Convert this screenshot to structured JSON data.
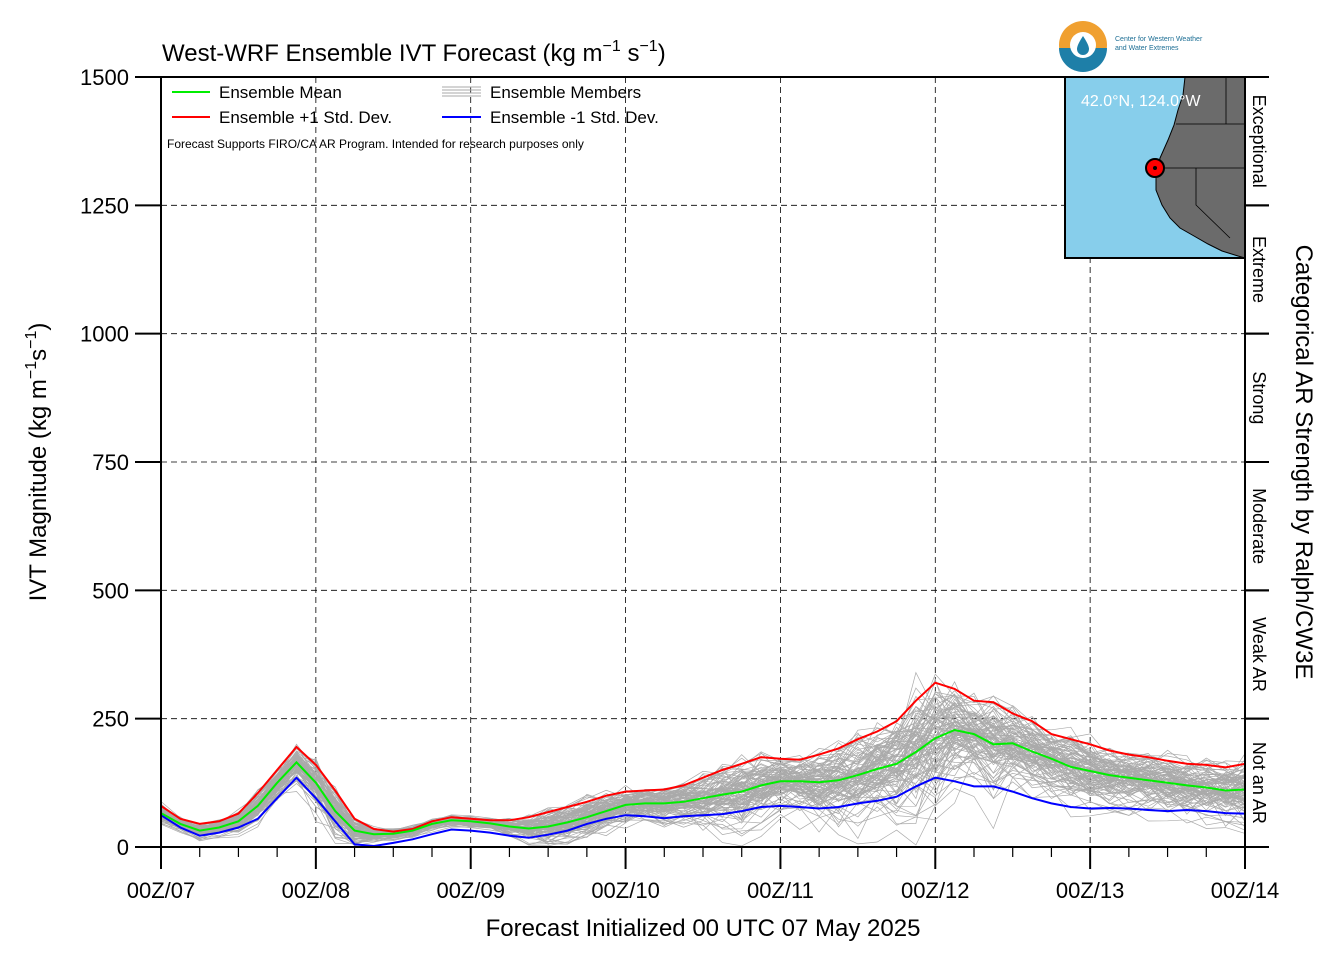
{
  "chart_data": {
    "type": "line",
    "title": "West-WRF Ensemble IVT Forecast (kg m",
    "title_exp1": "−1",
    "title_mid": " s",
    "title_exp2": "−1",
    "title_end": ")",
    "ylabel": "IVT Magnitude (kg m",
    "ylabel_exp1": "−1",
    "ylabel_mid": "s",
    "ylabel_exp2": "−1",
    "ylabel_end": ")",
    "xlabel": "Forecast Initialized 00 UTC 07 May 2025",
    "right_label": "Categorical AR Strength by Ralph/CW3E",
    "ylim": [
      0,
      1500
    ],
    "yticks": [
      "0",
      "250",
      "500",
      "750",
      "1000",
      "1250",
      "1500"
    ],
    "x_unit": "forecast hour",
    "xlim": [
      0,
      168
    ],
    "xticks": [
      {
        "hour": 0,
        "label": "00Z/07"
      },
      {
        "hour": 24,
        "label": "00Z/08"
      },
      {
        "hour": 48,
        "label": "00Z/09"
      },
      {
        "hour": 72,
        "label": "00Z/10"
      },
      {
        "hour": 96,
        "label": "00Z/11"
      },
      {
        "hour": 120,
        "label": "00Z/12"
      },
      {
        "hour": 144,
        "label": "00Z/13"
      },
      {
        "hour": 168,
        "label": "00Z/14"
      }
    ],
    "grid": true,
    "legend_position": "top-left",
    "legend": [
      {
        "label": "Ensemble Mean",
        "color": "#00ee00"
      },
      {
        "label": "Ensemble +1 Std. Dev.",
        "color": "#ff0000"
      },
      {
        "label": "Ensemble Members",
        "color": "#aaaaaa"
      },
      {
        "label": "Ensemble -1 Std. Dev.",
        "color": "#0000ff"
      }
    ],
    "note": "Forecast Supports FIRO/CA AR Program. Intended for research purposes only",
    "categories": [
      {
        "label": "Not an AR",
        "from": 0,
        "to": 250
      },
      {
        "label": "Weak AR",
        "from": 250,
        "to": 500
      },
      {
        "label": "Moderate",
        "from": 500,
        "to": 750
      },
      {
        "label": "Strong",
        "from": 750,
        "to": 1000
      },
      {
        "label": "Extreme",
        "from": 1000,
        "to": 1250
      },
      {
        "label": "Exceptional",
        "from": 1250,
        "to": 1500
      }
    ],
    "x": [
      0,
      3,
      6,
      9,
      12,
      15,
      18,
      21,
      24,
      27,
      30,
      33,
      36,
      39,
      42,
      45,
      48,
      51,
      54,
      57,
      60,
      63,
      66,
      69,
      72,
      75,
      78,
      81,
      84,
      87,
      90,
      93,
      96,
      99,
      102,
      105,
      108,
      111,
      114,
      117,
      120,
      123,
      126,
      129,
      132,
      135,
      138,
      141,
      144,
      147,
      150,
      153,
      156,
      159,
      162,
      165,
      168
    ],
    "series": [
      {
        "name": "Ensemble Mean",
        "color": "#00ee00",
        "values": [
          66,
          45,
          32,
          38,
          50,
          80,
          125,
          165,
          125,
          70,
          32,
          25,
          26,
          32,
          45,
          52,
          50,
          46,
          40,
          36,
          40,
          48,
          58,
          70,
          82,
          85,
          85,
          88,
          95,
          102,
          108,
          120,
          128,
          128,
          126,
          130,
          140,
          152,
          162,
          185,
          212,
          228,
          220,
          200,
          202,
          186,
          172,
          156,
          148,
          140,
          135,
          130,
          125,
          120,
          116,
          110,
          112
        ]
      },
      {
        "name": "Ensemble +1 Std. Dev.",
        "color": "#ff0000",
        "values": [
          80,
          55,
          45,
          50,
          65,
          105,
          150,
          195,
          160,
          110,
          55,
          35,
          30,
          35,
          50,
          58,
          55,
          52,
          52,
          58,
          68,
          78,
          88,
          100,
          108,
          110,
          112,
          120,
          135,
          150,
          162,
          175,
          172,
          170,
          180,
          192,
          210,
          225,
          245,
          285,
          320,
          308,
          285,
          282,
          260,
          245,
          220,
          210,
          200,
          188,
          180,
          175,
          168,
          162,
          160,
          155,
          162
        ]
      },
      {
        "name": "Ensemble -1 Std. Dev.",
        "color": "#0000ff",
        "values": [
          62,
          38,
          22,
          28,
          38,
          55,
          95,
          135,
          95,
          50,
          5,
          2,
          8,
          15,
          25,
          34,
          32,
          28,
          22,
          18,
          24,
          32,
          45,
          55,
          62,
          60,
          56,
          60,
          62,
          64,
          70,
          78,
          80,
          78,
          75,
          78,
          85,
          90,
          98,
          118,
          135,
          128,
          118,
          118,
          108,
          95,
          85,
          78,
          75,
          76,
          75,
          72,
          70,
          72,
          70,
          66,
          65
        ]
      }
    ],
    "members": {
      "count": 100,
      "color": "#aaaaaa"
    }
  },
  "inset": {
    "coord_label": "42.0°N, 124.0°W",
    "land_color": "#6b6b6b",
    "ocean_color": "#87ceeb"
  },
  "logo": {
    "line1": "Center for Western Weather",
    "line2": "and Water Extremes"
  }
}
